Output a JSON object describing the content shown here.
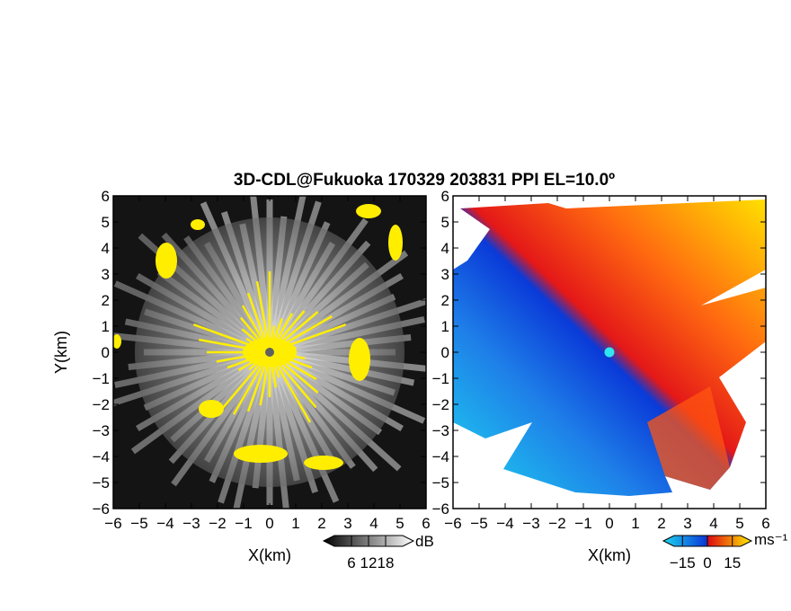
{
  "chart_data": [
    {
      "type": "heatmap",
      "title": "3D-CDL@Fukuoka 170329 203831 PPI EL=10.0º",
      "panel": "reflectivity",
      "xlabel": "X(km)",
      "ylabel": "Y(km)",
      "xlim": [
        -6,
        6
      ],
      "ylim": [
        -6,
        6
      ],
      "x_ticks": [
        "−6",
        "−5",
        "−4",
        "−3",
        "−2",
        "−1",
        "0",
        "1",
        "2",
        "3",
        "4",
        "5",
        "6"
      ],
      "y_ticks": [
        "6",
        "5",
        "4",
        "3",
        "2",
        "1",
        "0",
        "−1",
        "−2",
        "−3",
        "−4",
        "−5",
        "−6"
      ],
      "colorbar": {
        "unit": "dB",
        "ticks": [
          "6",
          "12",
          "18"
        ],
        "tick_values": [
          6,
          12,
          18
        ],
        "range": [
          0,
          24
        ],
        "colors": [
          "#000000",
          "#ffffff"
        ]
      },
      "highlight_color": "#ffee00",
      "radar_site": {
        "x": 0,
        "y": 0,
        "color": "#606060"
      }
    },
    {
      "type": "heatmap",
      "panel": "doppler_velocity",
      "xlabel": "X(km)",
      "xlim": [
        -6,
        6
      ],
      "ylim": [
        -6,
        6
      ],
      "x_ticks": [
        "−6",
        "−5",
        "−4",
        "−3",
        "−2",
        "−1",
        "0",
        "1",
        "2",
        "3",
        "4",
        "5",
        "6"
      ],
      "y_ticks": [
        "6",
        "5",
        "4",
        "3",
        "2",
        "1",
        "0",
        "−1",
        "−2",
        "−3",
        "−4",
        "−5",
        "−6"
      ],
      "colorbar": {
        "unit": "ms⁻¹",
        "ticks": [
          "−15",
          "0",
          "15"
        ],
        "tick_values": [
          -15,
          0,
          15
        ],
        "range": [
          -20,
          20
        ],
        "colors": [
          "#1fd6f0",
          "#0a3ad8",
          "#e01010",
          "#ffee00"
        ]
      },
      "radar_site": {
        "x": 0,
        "y": 0,
        "color": "#2ee6f0"
      }
    }
  ]
}
